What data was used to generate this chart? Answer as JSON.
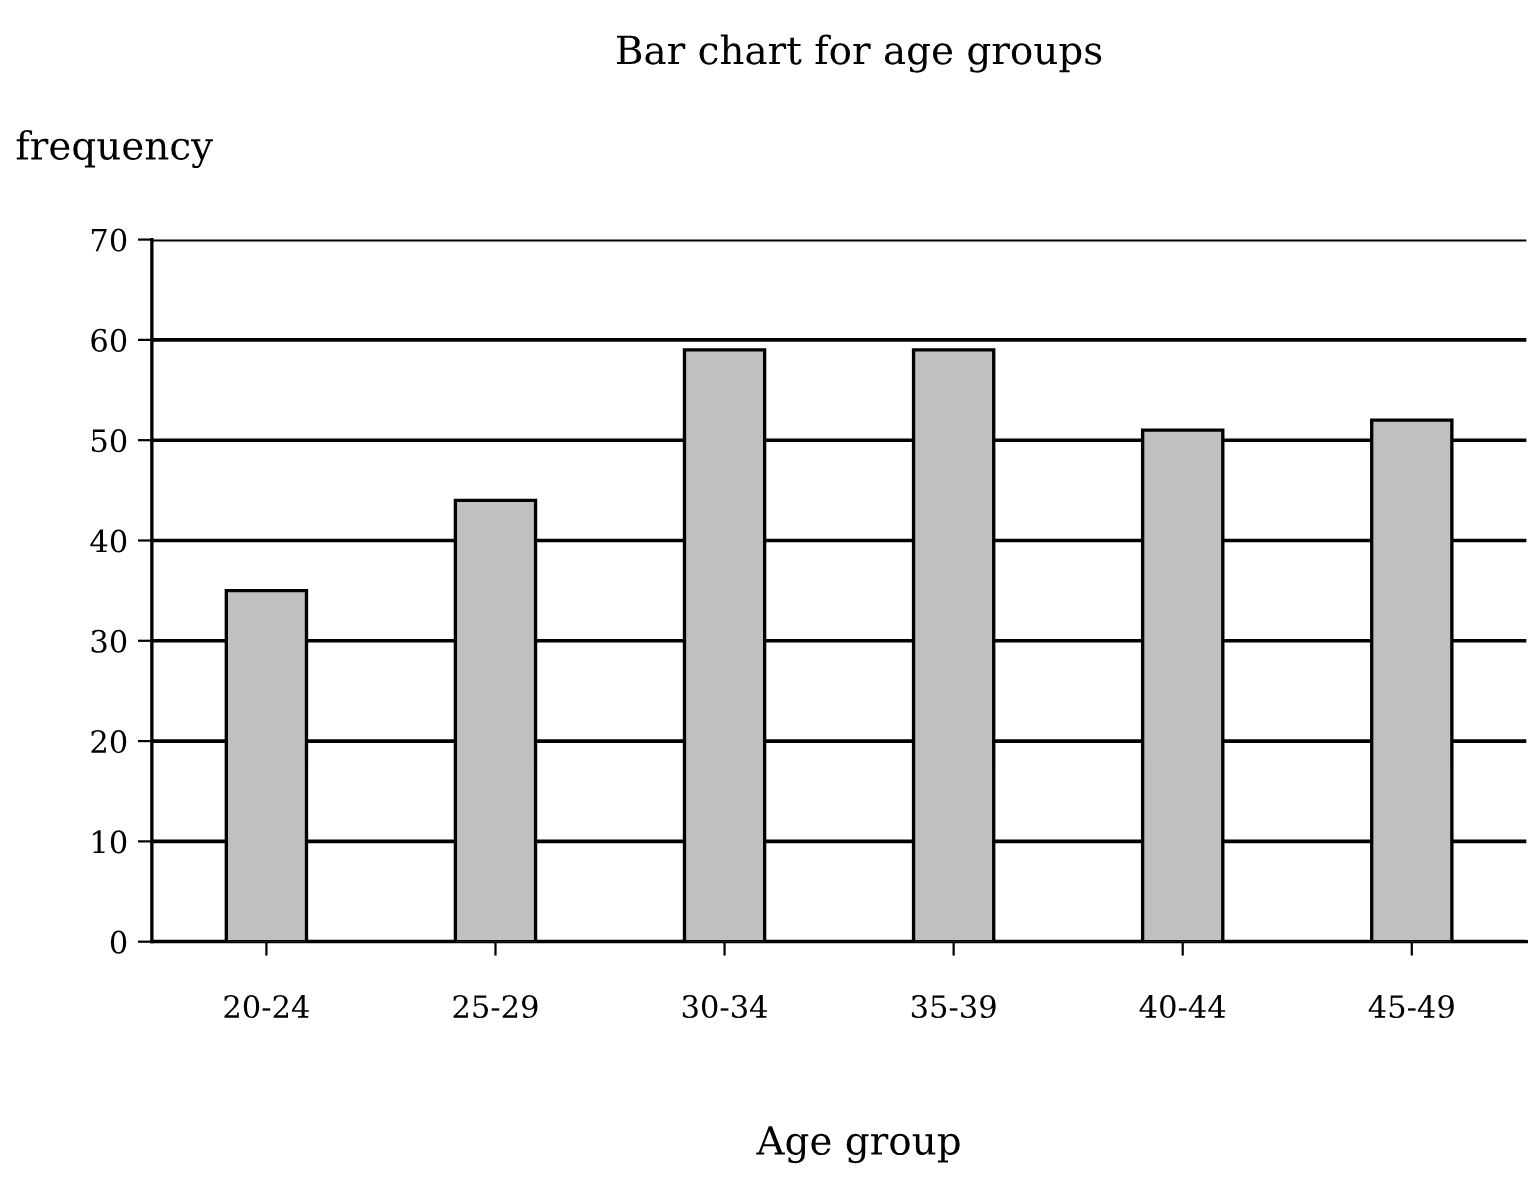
{
  "chart_data": {
    "type": "bar",
    "title": "Bar chart for age groups",
    "xlabel": "Age group",
    "ylabel": "frequency",
    "categories": [
      "20-24",
      "25-29",
      "30-34",
      "35-39",
      "40-44",
      "45-49"
    ],
    "values": [
      35,
      44,
      59,
      59,
      51,
      52
    ],
    "color": "#c0c0c0",
    "ylim": [
      0,
      70
    ],
    "yticks": [
      0,
      10,
      20,
      30,
      40,
      50,
      60,
      70
    ],
    "grid": "y"
  }
}
